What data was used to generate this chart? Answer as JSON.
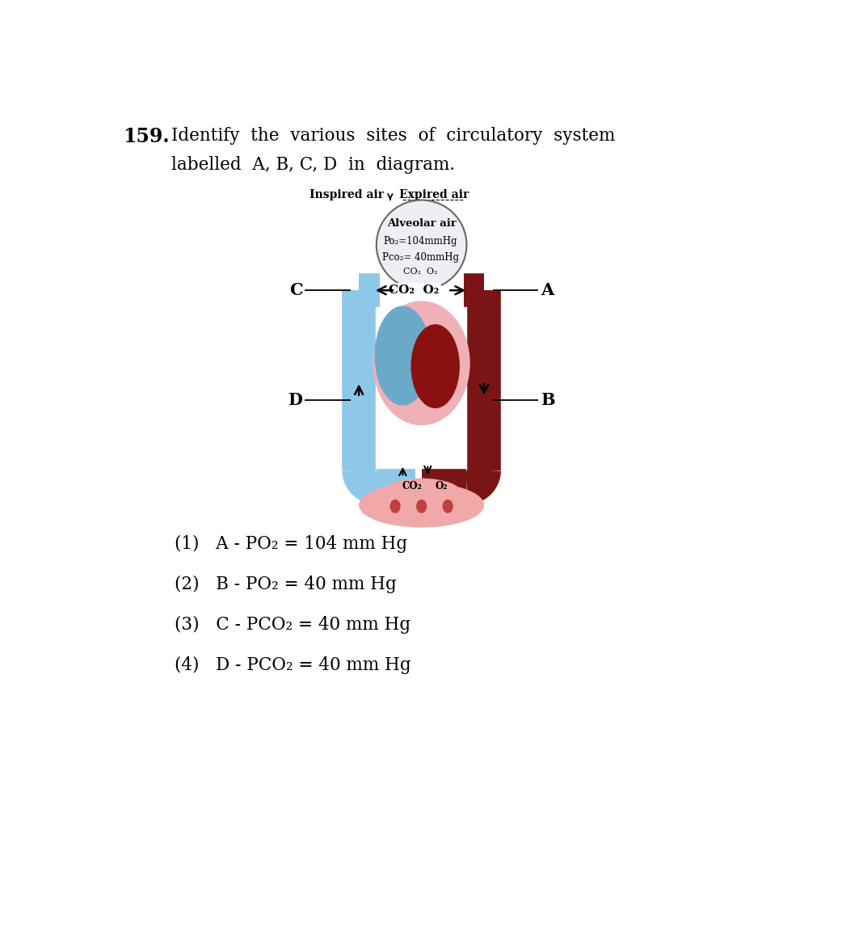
{
  "title_num": "159.",
  "title_rest": "Identify  the  various  sites  of  circulatory  system",
  "title_line2": "labelled  A, B, C, D  in  diagram.",
  "inspired_air": "Inspired air",
  "expired_air": "Expired air",
  "alveolar_air": "Alveolar air",
  "alveolar_po2": "Po₂=104mmHg",
  "alveolar_pco2": "Pco₂= 40mmHg",
  "alveolar_gases": "CO₂  O₂",
  "lung_co2_o2_left": "CO₂",
  "lung_co2_o2_right": "O₂",
  "tissue_co2": "CO₂",
  "tissue_o2": "O₂",
  "label_A": "A",
  "label_B": "B",
  "label_C": "C",
  "label_D": "D",
  "answer1": "(1)   A - PO₂ = 104 mm Hg",
  "answer2": "(2)   B - PO₂ = 40 mm Hg",
  "answer3": "(3)   C - PCO₂ = 40 mm Hg",
  "answer4": "(4)   D - PCO₂ = 40 mm Hg",
  "color_dark_red": "#7B1515",
  "color_blue": "#8EC8E8",
  "color_pink_heart": "#F0B0B8",
  "color_dark_blue_heart": "#6AAAC8",
  "color_dark_red_heart": "#8B1010",
  "color_lung_bg": "#EEEEF5",
  "color_tissue_pink": "#F0A8A8",
  "color_tissue_dark": "#C04040",
  "bg_color": "#FFFFFF"
}
